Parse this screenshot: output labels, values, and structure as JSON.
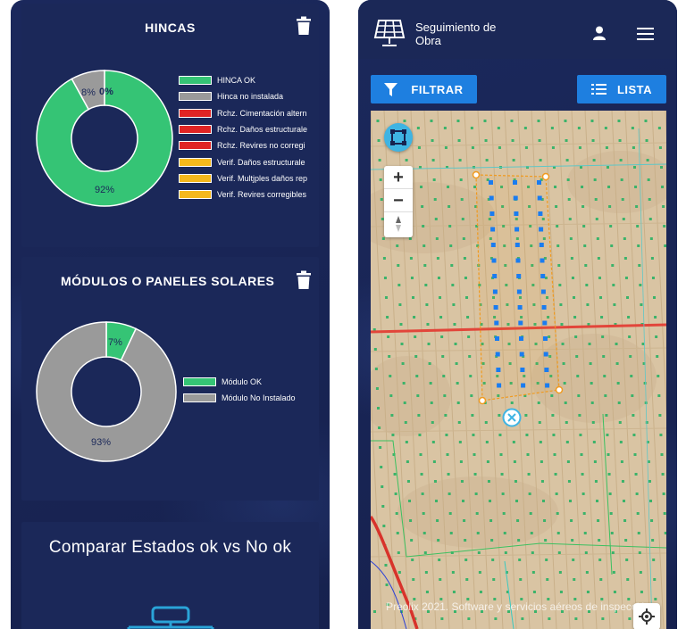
{
  "left_screen": {
    "hincas_card": {
      "title": "HINCAS",
      "icon": "trash-icon",
      "chart": {
        "type": "pie",
        "values": [
          92,
          8,
          0
        ],
        "labels": [
          "92%",
          "8%",
          "0%"
        ],
        "colors": [
          "#35c475",
          "#9a9a9a",
          "#e02424"
        ]
      },
      "legend": [
        {
          "label": "HINCA OK",
          "color": "#35c475"
        },
        {
          "label": "Hinca no instalada",
          "color": "#9a9a9a"
        },
        {
          "label": "Rchz. Cimentación altern",
          "color": "#e02424"
        },
        {
          "label": "Rchz. Daños estructurale",
          "color": "#e02424"
        },
        {
          "label": "Rchz. Revires no corregi",
          "color": "#e02424"
        },
        {
          "label": "Verif. Daños estructurale",
          "color": "#f5b81c"
        },
        {
          "label": "Verif. Multjples daños rep",
          "color": "#f5b81c"
        },
        {
          "label": "Verif. Revires corregibles",
          "color": "#f5b81c"
        }
      ]
    },
    "modulos_card": {
      "title": "MÓDULOS O PANELES SOLARES",
      "icon": "trash-icon",
      "chart": {
        "type": "pie",
        "values": [
          7,
          93
        ],
        "labels": [
          "7%",
          "93%"
        ],
        "colors": [
          "#35c475",
          "#9a9a9a"
        ]
      },
      "legend": [
        {
          "label": "Módulo OK",
          "color": "#35c475"
        },
        {
          "label": "Módulo No Instalado",
          "color": "#9a9a9a"
        }
      ]
    },
    "compare_card": {
      "title": "Comparar Estados ok vs No ok",
      "icon": "compare-diagram-icon"
    }
  },
  "right_screen": {
    "header": {
      "title": "Seguimiento de Obra",
      "logo_icon": "solar-panel-icon",
      "user_icon": "user-icon",
      "menu_icon": "hamburger-menu-icon"
    },
    "filter_button": {
      "label": "FILTRAR",
      "icon": "funnel-icon"
    },
    "list_button": {
      "label": "LISTA",
      "icon": "list-icon"
    },
    "map": {
      "zoom_in": "+",
      "zoom_out": "−",
      "footer_text": "Preolix 2021. Software y servicios aéreos de inspección",
      "select_tool_icon": "area-select-icon",
      "compass_icon": "compass-icon",
      "locate_icon": "locate-icon",
      "marker_icon": "close-circle-icon"
    }
  },
  "colors": {
    "background": "#17224f",
    "card": "#1b2859",
    "accent": "#1e7fe0",
    "ok": "#35c475",
    "not_installed": "#9a9a9a",
    "rejected": "#e02424",
    "verify": "#f5b81c"
  }
}
